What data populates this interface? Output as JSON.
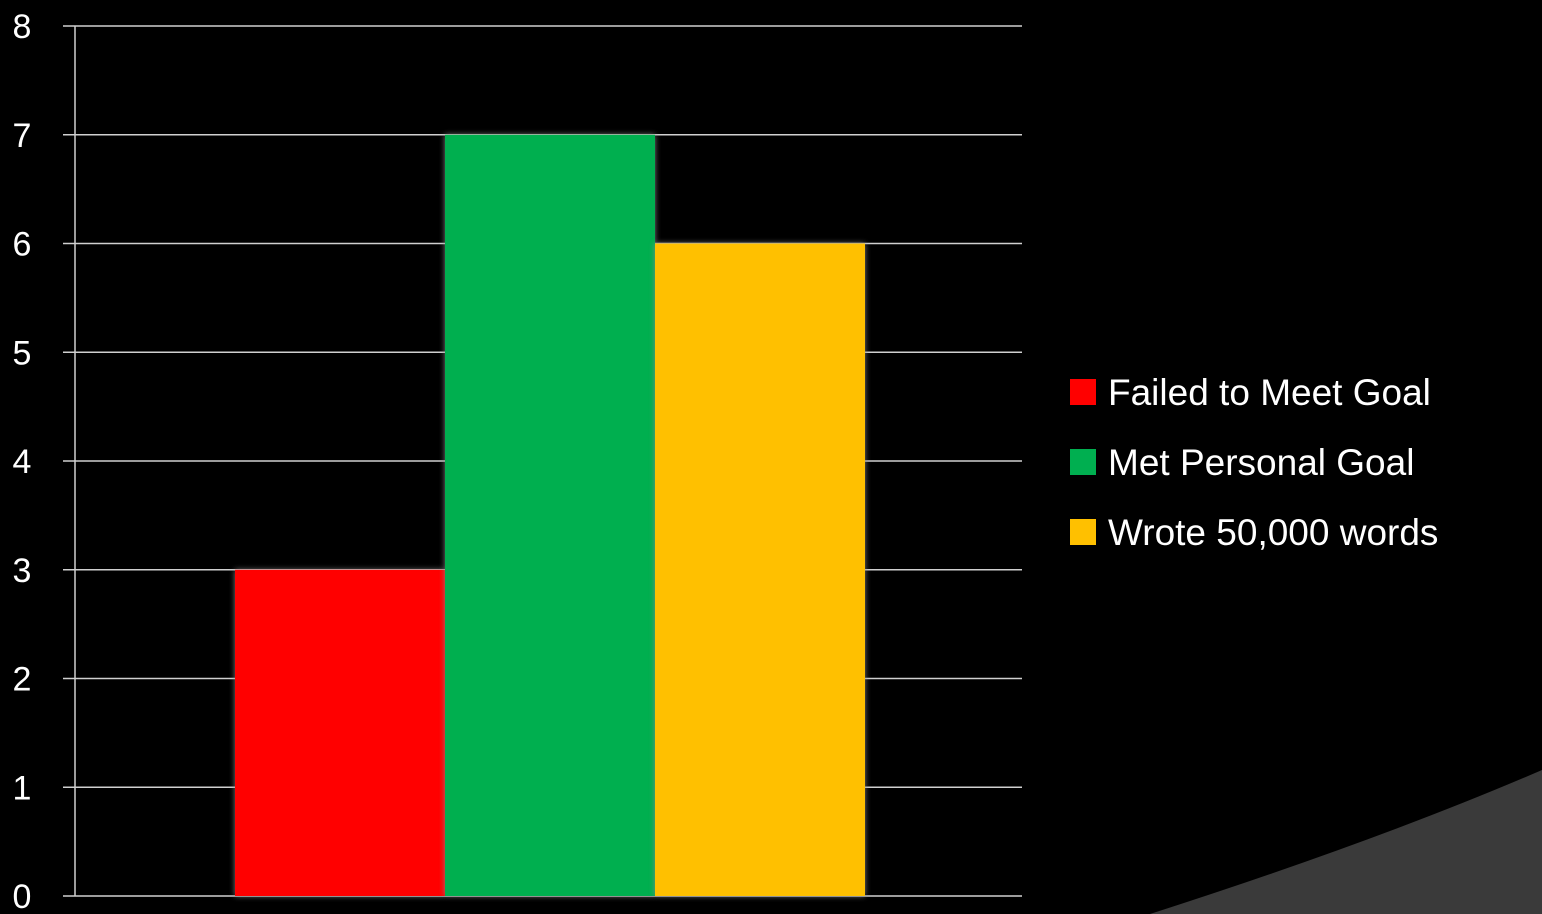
{
  "chart_data": {
    "type": "bar",
    "categories": [
      ""
    ],
    "series": [
      {
        "name": "Failed to Meet Goal",
        "values": [
          3
        ],
        "color": "#FF0000"
      },
      {
        "name": "Met Personal Goal",
        "values": [
          7
        ],
        "color": "#00AF50"
      },
      {
        "name": "Wrote 50,000 words",
        "values": [
          6
        ],
        "color": "#FFC000"
      }
    ],
    "title": "",
    "xlabel": "",
    "ylabel": "",
    "ylim": [
      0,
      8
    ],
    "yticks": [
      "0",
      "1",
      "2",
      "3",
      "4",
      "5",
      "6",
      "7",
      "8"
    ],
    "grid": true,
    "legend_position": "right",
    "background": "#000000",
    "decoration_color": "#3A3A3A"
  }
}
